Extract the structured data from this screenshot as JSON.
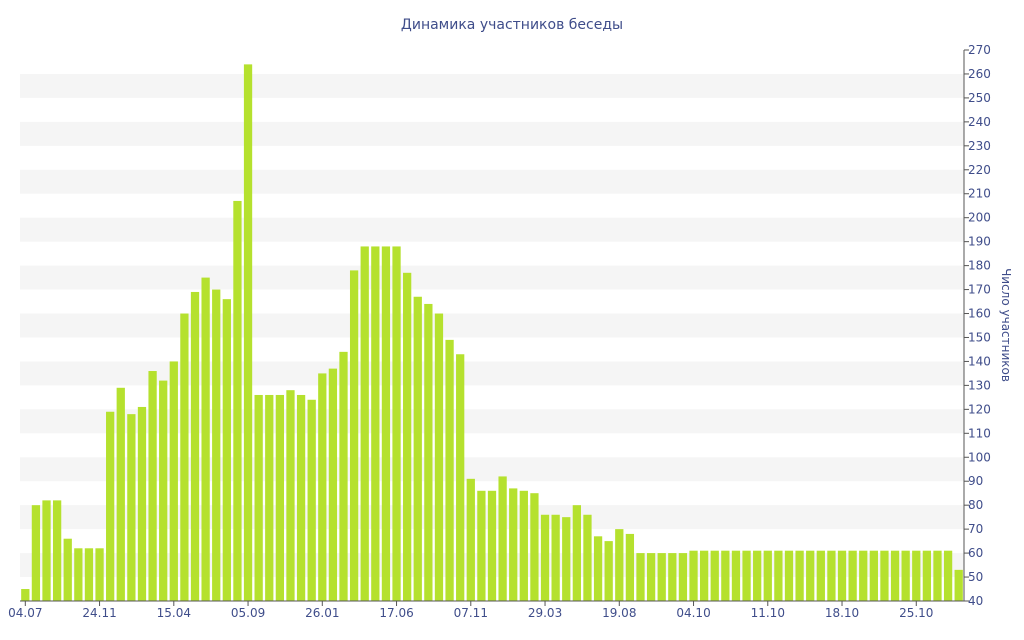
{
  "chart_data": {
    "type": "bar",
    "title": "Динамика участников беседы",
    "xlabel": "",
    "ylabel": "Число участников",
    "ylim": [
      40,
      270
    ],
    "y_ticks": [
      40,
      50,
      60,
      70,
      80,
      90,
      100,
      110,
      120,
      130,
      140,
      150,
      160,
      170,
      180,
      190,
      200,
      210,
      220,
      230,
      240,
      250,
      260,
      270
    ],
    "y_axis_position": "right",
    "grid": "alternating horizontal bands",
    "legend": "none",
    "bar_color": "#b5e12e",
    "band_color": "#f5f5f5",
    "text_color": "#3f4d8a",
    "x_tick_labels": [
      {
        "label": "04.07",
        "index": 0
      },
      {
        "label": "24.11",
        "index": 7
      },
      {
        "label": "15.04",
        "index": 14
      },
      {
        "label": "05.09",
        "index": 21
      },
      {
        "label": "26.01",
        "index": 28
      },
      {
        "label": "17.06",
        "index": 35
      },
      {
        "label": "07.11",
        "index": 42
      },
      {
        "label": "29.03",
        "index": 49
      },
      {
        "label": "19.08",
        "index": 56
      },
      {
        "label": "04.10",
        "index": 63
      },
      {
        "label": "11.10",
        "index": 70
      },
      {
        "label": "18.10",
        "index": 77
      },
      {
        "label": "25.10",
        "index": 84
      }
    ],
    "values": [
      45,
      80,
      82,
      82,
      66,
      62,
      62,
      62,
      119,
      129,
      118,
      121,
      136,
      132,
      140,
      160,
      169,
      175,
      170,
      166,
      207,
      264,
      126,
      126,
      126,
      128,
      126,
      124,
      135,
      137,
      144,
      178,
      188,
      188,
      188,
      188,
      177,
      167,
      164,
      160,
      149,
      143,
      91,
      86,
      86,
      92,
      87,
      86,
      85,
      76,
      76,
      75,
      80,
      76,
      67,
      65,
      70,
      68,
      60,
      60,
      60,
      60,
      60,
      61,
      61,
      61,
      61,
      61,
      61,
      61,
      61,
      61,
      61,
      61,
      61,
      61,
      61,
      61,
      61,
      61,
      61,
      61,
      61,
      61,
      61,
      61,
      61,
      61,
      53
    ]
  }
}
